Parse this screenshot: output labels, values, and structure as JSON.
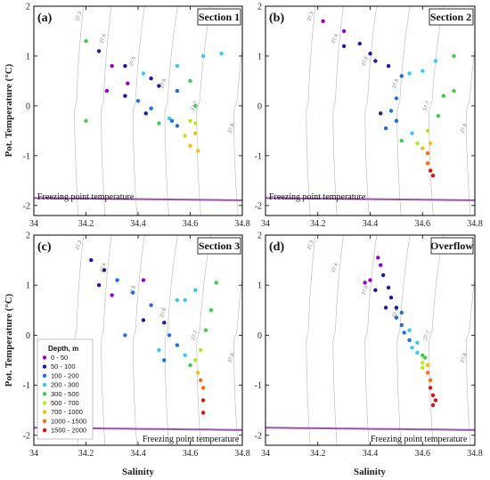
{
  "chart_data": [
    {
      "type": "scatter",
      "panel_label": "(a)",
      "title": "Section 1",
      "xlabel": "",
      "ylabel": "Pot. Temperature (°C)",
      "xlim": [
        34,
        34.8
      ],
      "ylim": [
        -2.2,
        2
      ],
      "xticks": [
        "34",
        "34.2",
        "34.4",
        "34.6",
        "34.8"
      ],
      "yticks": [
        "2",
        "1",
        "0",
        "-1",
        "-2"
      ],
      "freezing_label": "Freezing point temperature",
      "isopycnal_labels": [
        "27.3",
        "27.4",
        "27.5",
        "27.6",
        "27.7",
        "27.8"
      ],
      "points": [
        [
          34.2,
          1.3,
          4
        ],
        [
          34.25,
          1.1,
          1
        ],
        [
          34.35,
          0.8,
          1
        ],
        [
          34.45,
          0.55,
          1
        ],
        [
          34.55,
          0.3,
          2
        ],
        [
          34.42,
          0.65,
          3
        ],
        [
          34.55,
          0.8,
          3
        ],
        [
          34.65,
          1.0,
          3
        ],
        [
          34.72,
          1.05,
          3
        ],
        [
          34.3,
          0.8,
          0
        ],
        [
          34.36,
          0.45,
          0
        ],
        [
          34.4,
          0.1,
          2
        ],
        [
          34.45,
          -0.05,
          2
        ],
        [
          34.52,
          -0.25,
          3
        ],
        [
          34.6,
          0.5,
          4
        ],
        [
          34.62,
          0.0,
          4
        ],
        [
          34.6,
          -0.3,
          5
        ],
        [
          34.62,
          -0.35,
          5
        ],
        [
          34.48,
          -0.35,
          4
        ],
        [
          34.28,
          0.3,
          0
        ],
        [
          34.62,
          -0.55,
          6
        ],
        [
          34.6,
          -0.8,
          6
        ],
        [
          34.63,
          -0.9,
          6
        ],
        [
          34.58,
          -0.6,
          5
        ],
        [
          34.53,
          -0.3,
          2
        ],
        [
          34.48,
          0.4,
          1
        ],
        [
          34.35,
          0.2,
          1
        ],
        [
          34.43,
          -0.15,
          1
        ],
        [
          34.55,
          -0.4,
          2
        ],
        [
          34.2,
          -0.3,
          4
        ]
      ]
    },
    {
      "type": "scatter",
      "panel_label": "(b)",
      "title": "Section 2",
      "xlabel": "",
      "ylabel": "",
      "xlim": [
        34,
        34.8
      ],
      "ylim": [
        -2.2,
        2
      ],
      "xticks": [
        "34",
        "34.2",
        "34.4",
        "34.6",
        "34.8"
      ],
      "yticks": [
        "2",
        "1",
        "0",
        "-1",
        "-2"
      ],
      "freezing_label": "Freezing point temperature",
      "isopycnal_labels": [
        "27.3",
        "27.4",
        "27.5",
        "27.6",
        "27.7",
        "27.8"
      ],
      "points": [
        [
          34.22,
          1.7,
          0
        ],
        [
          34.3,
          1.5,
          0
        ],
        [
          34.36,
          1.25,
          1
        ],
        [
          34.4,
          1.05,
          1
        ],
        [
          34.47,
          0.8,
          1
        ],
        [
          34.3,
          1.2,
          1
        ],
        [
          34.42,
          0.9,
          1
        ],
        [
          34.52,
          0.6,
          2
        ],
        [
          34.5,
          0.15,
          2
        ],
        [
          34.48,
          -0.1,
          2
        ],
        [
          34.5,
          -0.3,
          2
        ],
        [
          34.56,
          -0.55,
          3
        ],
        [
          34.55,
          0.65,
          3
        ],
        [
          34.65,
          0.9,
          3
        ],
        [
          34.72,
          1.0,
          4
        ],
        [
          34.6,
          0.7,
          3
        ],
        [
          34.72,
          0.3,
          4
        ],
        [
          34.68,
          0.2,
          4
        ],
        [
          34.66,
          -0.2,
          4
        ],
        [
          34.62,
          -0.5,
          5
        ],
        [
          34.63,
          -0.75,
          6
        ],
        [
          34.62,
          -0.95,
          7
        ],
        [
          34.62,
          -1.15,
          7
        ],
        [
          34.63,
          -1.3,
          8
        ],
        [
          34.64,
          -1.4,
          8
        ],
        [
          34.58,
          -0.75,
          5
        ],
        [
          34.52,
          -0.7,
          4
        ],
        [
          34.46,
          -0.45,
          2
        ],
        [
          34.44,
          -0.15,
          1
        ],
        [
          34.6,
          -0.85,
          6
        ]
      ]
    },
    {
      "type": "scatter",
      "panel_label": "(c)",
      "title": "Section 3",
      "xlabel": "Salinity",
      "ylabel": "Pot. Temperature (°C)",
      "xlim": [
        34,
        34.8
      ],
      "ylim": [
        -2.2,
        2
      ],
      "xticks": [
        "34",
        "34.2",
        "34.4",
        "34.6",
        "34.8"
      ],
      "yticks": [
        "2",
        "1",
        "0",
        "-1",
        "-2"
      ],
      "freezing_label": "Freezing point temperature",
      "isopycnal_labels": [
        "27.3",
        "27.4",
        "27.5",
        "27.6",
        "27.7",
        "27.8"
      ],
      "legend_title": "Depth, m",
      "legend_entries": [
        "0 - 50",
        "50 - 100",
        "100 - 200",
        "200 - 300",
        "300 - 500",
        "500 - 700",
        "700 - 1000",
        "1000 - 1500",
        "1500 - 2000"
      ],
      "points": [
        [
          34.22,
          1.5,
          1
        ],
        [
          34.27,
          1.3,
          1
        ],
        [
          34.32,
          1.1,
          2
        ],
        [
          34.38,
          0.85,
          2
        ],
        [
          34.42,
          1.1,
          0
        ],
        [
          34.3,
          0.8,
          0
        ],
        [
          34.45,
          0.6,
          2
        ],
        [
          34.5,
          0.25,
          1
        ],
        [
          34.52,
          0.0,
          2
        ],
        [
          34.55,
          -0.2,
          2
        ],
        [
          34.58,
          -0.4,
          3
        ],
        [
          34.48,
          -0.3,
          3
        ],
        [
          34.55,
          0.7,
          3
        ],
        [
          34.62,
          0.9,
          3
        ],
        [
          34.7,
          1.05,
          4
        ],
        [
          34.68,
          0.5,
          4
        ],
        [
          34.66,
          0.1,
          4
        ],
        [
          34.64,
          -0.3,
          5
        ],
        [
          34.62,
          -0.5,
          5
        ],
        [
          34.63,
          -0.75,
          6
        ],
        [
          34.64,
          -0.9,
          7
        ],
        [
          34.65,
          -1.05,
          7
        ],
        [
          34.65,
          -1.3,
          8
        ],
        [
          34.65,
          -1.55,
          8
        ],
        [
          34.5,
          -0.5,
          2
        ],
        [
          34.42,
          0.3,
          1
        ],
        [
          34.35,
          0.0,
          2
        ],
        [
          34.25,
          1.0,
          1
        ],
        [
          34.58,
          0.7,
          3
        ],
        [
          34.6,
          -0.6,
          4
        ]
      ]
    },
    {
      "type": "scatter",
      "panel_label": "(d)",
      "title": "Overflow",
      "xlabel": "Salinity",
      "ylabel": "",
      "xlim": [
        34,
        34.8
      ],
      "ylim": [
        -2.2,
        2
      ],
      "xticks": [
        "34",
        "34.2",
        "34.4",
        "34.6",
        "34.8"
      ],
      "yticks": [
        "2",
        "1",
        "0",
        "-1",
        "-2"
      ],
      "freezing_label": "Freezing point temperature",
      "isopycnal_labels": [
        "27.3",
        "27.4",
        "27.5",
        "27.6",
        "27.7",
        "27.8"
      ],
      "points": [
        [
          34.43,
          1.55,
          0
        ],
        [
          34.44,
          1.4,
          0
        ],
        [
          34.4,
          1.1,
          0
        ],
        [
          34.45,
          1.2,
          1
        ],
        [
          34.47,
          0.95,
          1
        ],
        [
          34.48,
          0.75,
          1
        ],
        [
          34.5,
          0.55,
          1
        ],
        [
          34.5,
          0.35,
          2
        ],
        [
          34.52,
          0.2,
          2
        ],
        [
          34.53,
          0.05,
          2
        ],
        [
          34.55,
          -0.1,
          2
        ],
        [
          34.56,
          -0.25,
          3
        ],
        [
          34.58,
          -0.35,
          3
        ],
        [
          34.6,
          -0.4,
          4
        ],
        [
          34.61,
          -0.45,
          4
        ],
        [
          34.6,
          -0.55,
          5
        ],
        [
          34.62,
          -0.6,
          6
        ],
        [
          34.62,
          -0.75,
          7
        ],
        [
          34.63,
          -0.9,
          7
        ],
        [
          34.63,
          -1.05,
          8
        ],
        [
          34.64,
          -1.2,
          8
        ],
        [
          34.65,
          -1.3,
          8
        ],
        [
          34.46,
          0.55,
          1
        ],
        [
          34.52,
          0.45,
          2
        ],
        [
          34.58,
          -0.15,
          3
        ],
        [
          34.42,
          0.9,
          1
        ],
        [
          34.55,
          0.1,
          3
        ],
        [
          34.6,
          -0.65,
          5
        ],
        [
          34.64,
          -1.4,
          8
        ],
        [
          34.38,
          1.05,
          0
        ]
      ]
    }
  ],
  "depth_colors": [
    "#9900cc",
    "#1a1aaa",
    "#1f6fe8",
    "#36c9f5",
    "#3ecf48",
    "#b8e81a",
    "#f0c010",
    "#ff6a10",
    "#e01010"
  ]
}
